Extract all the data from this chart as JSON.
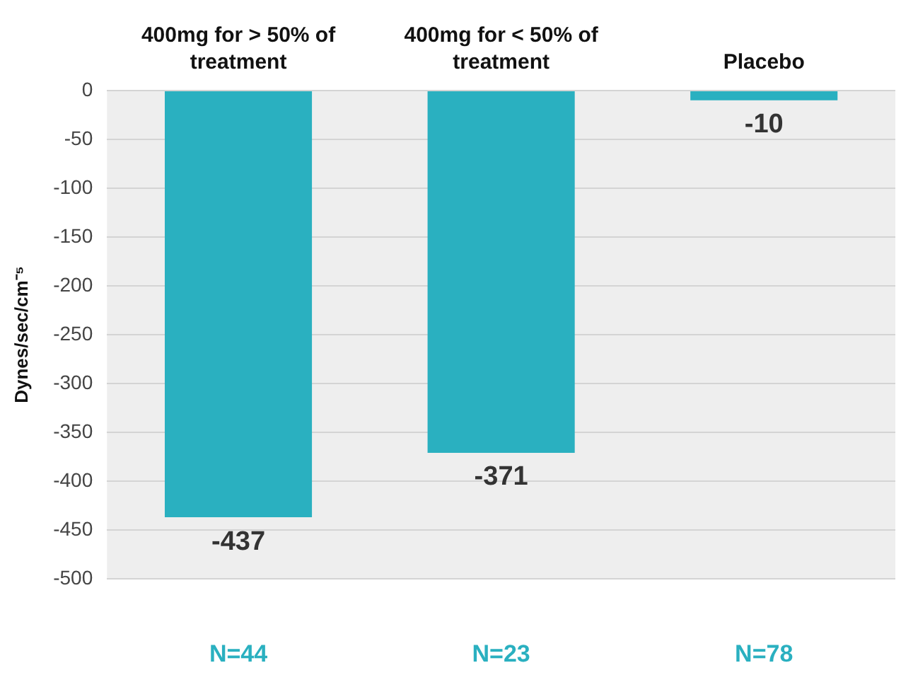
{
  "chart_data": {
    "type": "bar",
    "categories": [
      "400mg for > 50% of treatment",
      "400mg for < 50% of treatment",
      "Placebo"
    ],
    "values": [
      -437,
      -371,
      -10
    ],
    "color": "#2ab0c0",
    "ylabel": "Dynes/sec/cm⁻⁵",
    "ylim": [
      -500,
      0
    ],
    "yticks": [
      0,
      -50,
      -100,
      -150,
      -200,
      -250,
      -300,
      -350,
      -400,
      -450,
      -500
    ],
    "grid": "y",
    "data_labels": true,
    "annotations": [
      "N=44",
      "N=23",
      "N=78"
    ]
  }
}
